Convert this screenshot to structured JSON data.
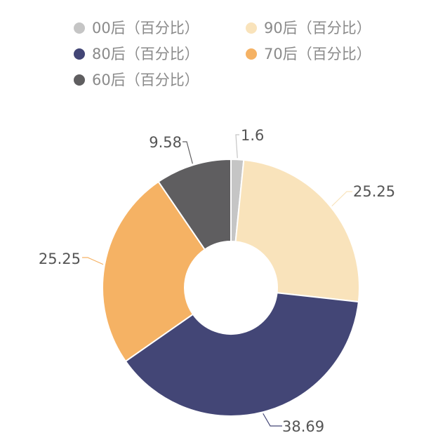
{
  "chart_data": {
    "type": "pie",
    "donut": true,
    "legend_position": "top",
    "categories": [
      "00后（百分比）",
      "90后（百分比）",
      "80后（百分比）",
      "70后（百分比）",
      "60后（百分比）"
    ],
    "values": [
      1.6,
      25.25,
      38.69,
      25.25,
      9.58
    ],
    "data_labels": [
      "1.6",
      "25.25",
      "38.69",
      "25.25",
      "9.58"
    ],
    "colors": [
      "#c5c5c5",
      "#f9e3bb",
      "#434676",
      "#f5b264",
      "#5f5e60"
    ]
  }
}
